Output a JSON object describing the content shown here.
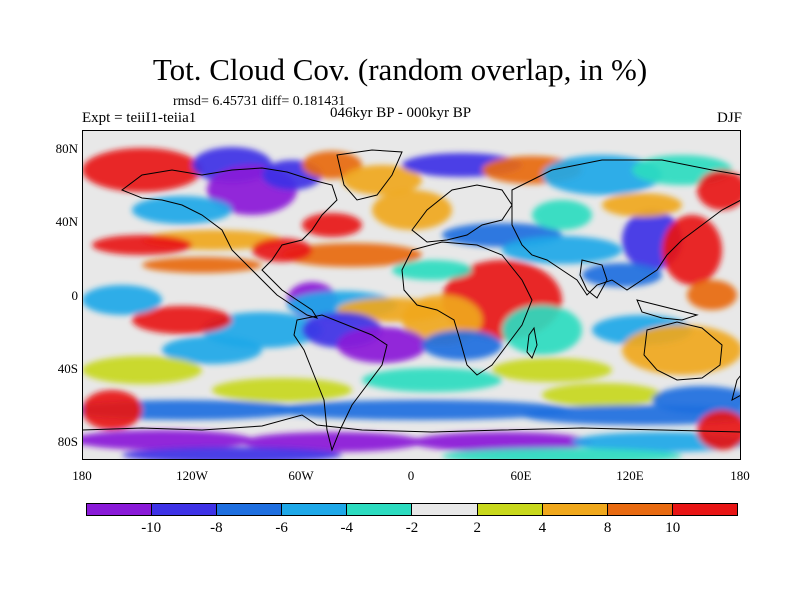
{
  "title": "Tot. Cloud Cov. (random overlap, in %)",
  "stats": "rmsd= 6.45731 diff= 0.181431",
  "experiment": "Expt = teiiI1-teiia1",
  "period": "046kyr BP - 000kyr BP",
  "season": "DJF",
  "y_ticks": [
    "80N",
    "40N",
    "0",
    "40S",
    "80S"
  ],
  "x_ticks": [
    "180",
    "120W",
    "60W",
    "0",
    "60E",
    "120E",
    "180"
  ],
  "colorbar": {
    "labels": [
      "-10",
      "-8",
      "-6",
      "-4",
      "-2",
      "2",
      "4",
      "8",
      "10"
    ],
    "colors": [
      "#8a1ad8",
      "#3e32e6",
      "#1e6fe0",
      "#1ea8e8",
      "#2cdcc0",
      "#e8e8e8",
      "#c8d81c",
      "#f0a81c",
      "#e86a10",
      "#e81414"
    ]
  },
  "chart_data": {
    "type": "heatmap",
    "title": "Tot. Cloud Cov. (random overlap, in %)",
    "subtitle": "046kyr BP - 000kyr BP",
    "season": "DJF",
    "rmsd": 6.45731,
    "diff": 0.181431,
    "x_range": [
      -180,
      180
    ],
    "y_range": [
      -90,
      90
    ],
    "levels": [
      -10,
      -8,
      -6,
      -4,
      -2,
      2,
      4,
      8,
      10
    ]
  }
}
